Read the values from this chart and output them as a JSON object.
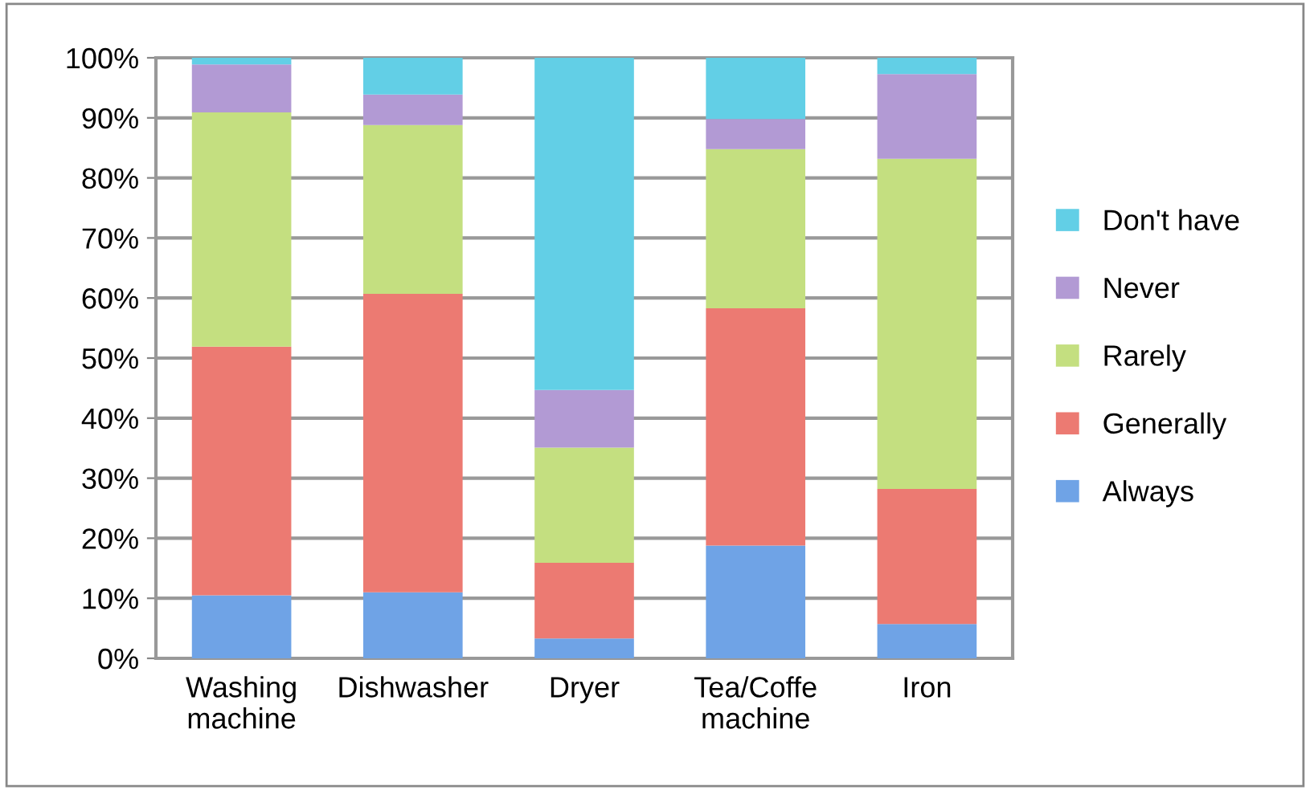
{
  "chart_data": {
    "type": "bar",
    "stacked": true,
    "categories": [
      "Washing\nmachine",
      "Dishwasher",
      "Dryer",
      "Tea/Coffe\nmachine",
      "Iron"
    ],
    "series": [
      {
        "name": "Always",
        "color": "#6fa3e6",
        "values": [
          10.5,
          11,
          3.3,
          18.8,
          5.7
        ]
      },
      {
        "name": "Generally",
        "color": "#ec7a72",
        "values": [
          41.4,
          49.7,
          12.6,
          39.5,
          22.5
        ]
      },
      {
        "name": "Rarely",
        "color": "#c4df80",
        "values": [
          39,
          28.1,
          19.2,
          26.5,
          55
        ]
      },
      {
        "name": "Never",
        "color": "#b29ad4",
        "values": [
          8,
          5.1,
          9.6,
          5,
          14.1
        ]
      },
      {
        "name": "Don't have",
        "color": "#62cfe6",
        "values": [
          1.1,
          6.1,
          55.3,
          10.2,
          2.7
        ]
      }
    ],
    "ylim": [
      0,
      100
    ],
    "yticks": [
      {
        "value": 0,
        "label": "0%"
      },
      {
        "value": 10,
        "label": "10%"
      },
      {
        "value": 20,
        "label": "20%"
      },
      {
        "value": 30,
        "label": "30%"
      },
      {
        "value": 40,
        "label": "40%"
      },
      {
        "value": 50,
        "label": "50%"
      },
      {
        "value": 60,
        "label": "60%"
      },
      {
        "value": 70,
        "label": "70%"
      },
      {
        "value": 80,
        "label": "80%"
      },
      {
        "value": 90,
        "label": "90%"
      },
      {
        "value": 100,
        "label": "100%"
      }
    ],
    "grid": "y",
    "legend": "right"
  }
}
